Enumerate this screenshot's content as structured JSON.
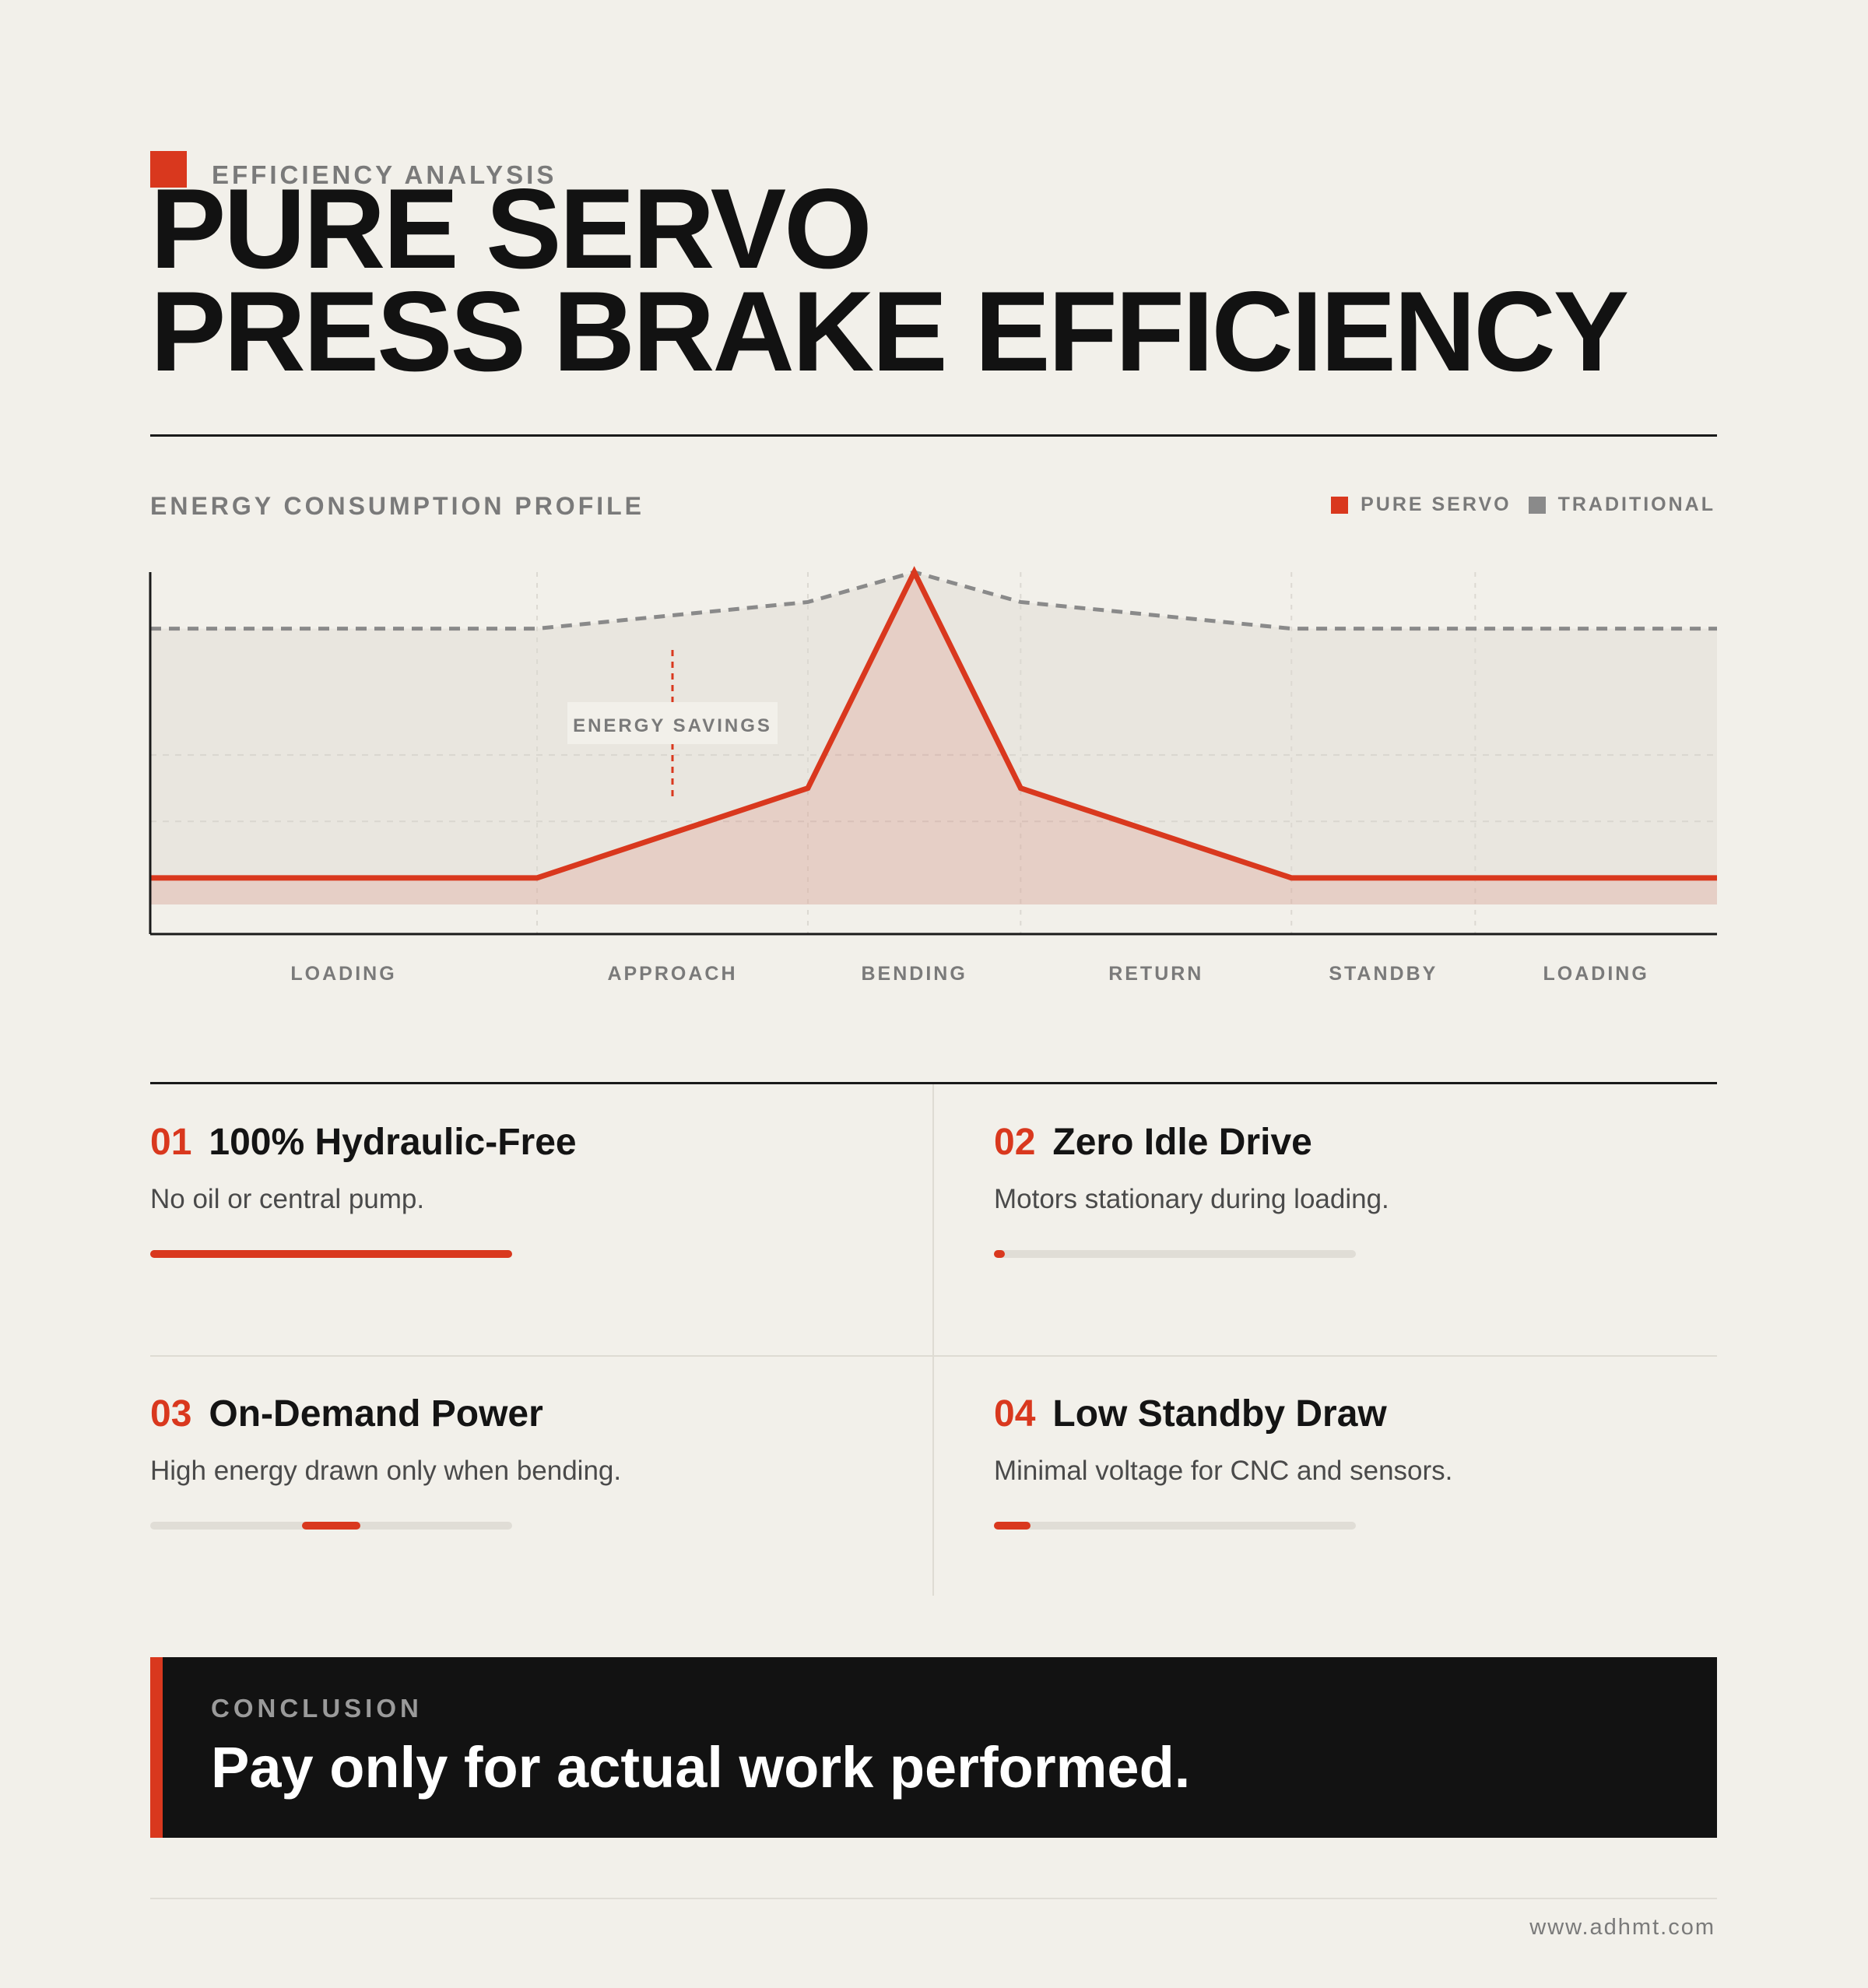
{
  "header": {
    "eyebrow": "EFFICIENCY ANALYSIS",
    "title_line1": "PURE SERVO",
    "title_line2": "PRESS BRAKE EFFICIENCY"
  },
  "chart": {
    "heading": "ENERGY CONSUMPTION PROFILE",
    "annotation": "ENERGY SAVINGS"
  },
  "chart_data": {
    "type": "line",
    "title": "ENERGY CONSUMPTION PROFILE",
    "xlabel": "",
    "ylabel": "",
    "x": [
      0,
      2.0,
      3.4,
      3.95,
      4.5,
      5.9,
      6.85,
      8.1
    ],
    "ylim": [
      0,
      100
    ],
    "grid": true,
    "legend_position": "top-right",
    "phases": [
      {
        "label": "LOADING",
        "start": 0,
        "end": 2.0
      },
      {
        "label": "APPROACH",
        "start": 2.0,
        "end": 3.4
      },
      {
        "label": "BENDING",
        "start": 3.4,
        "end": 4.5
      },
      {
        "label": "RETURN",
        "start": 4.5,
        "end": 5.9
      },
      {
        "label": "STANDBY",
        "start": 5.9,
        "end": 6.85
      },
      {
        "label": "LOADING",
        "start": 6.85,
        "end": 8.1
      }
    ],
    "series": [
      {
        "name": "PURE SERVO",
        "color": "#d9381e",
        "style": "solid",
        "values": [
          8,
          8,
          35,
          100,
          35,
          8,
          8,
          8
        ]
      },
      {
        "name": "TRADITIONAL",
        "color": "#8a8a8a",
        "style": "dashed",
        "values": [
          83,
          83,
          91,
          100,
          91,
          83,
          83,
          83
        ]
      }
    ]
  },
  "features": [
    {
      "number": "01",
      "title": "100% Hydraulic-Free",
      "description": "No oil or central pump.",
      "bar_start": 0,
      "bar_fill": 1.0
    },
    {
      "number": "02",
      "title": "Zero Idle Drive",
      "description": "Motors stationary during loading.",
      "bar_start": 0,
      "bar_fill": 0.03
    },
    {
      "number": "03",
      "title": "On-Demand Power",
      "description": "High energy drawn only when bending.",
      "bar_start": 0.42,
      "bar_fill": 0.16
    },
    {
      "number": "04",
      "title": "Low Standby Draw",
      "description": "Minimal voltage for CNC and sensors.",
      "bar_start": 0,
      "bar_fill": 0.1
    }
  ],
  "conclusion": {
    "label": "CONCLUSION",
    "text": "Pay only for actual work performed."
  },
  "footer": {
    "url": "www.adhmt.com"
  },
  "colors": {
    "accent": "#d9381e",
    "background": "#f2f0ea",
    "traditional": "#8a8a8a",
    "dark": "#121212"
  }
}
